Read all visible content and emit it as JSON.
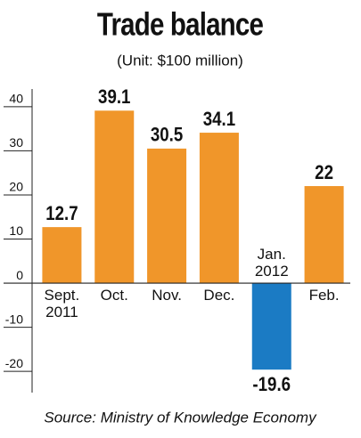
{
  "chart_data": {
    "type": "bar",
    "title": "Trade balance",
    "subtitle": "(Unit: $100 million)",
    "categories": [
      "Sept.\n2011",
      "Oct.",
      "Nov.",
      "Dec.",
      "Jan.\n2012",
      "Feb."
    ],
    "values": [
      12.7,
      39.1,
      30.5,
      34.1,
      -19.6,
      22
    ],
    "colors": [
      "#f0962a",
      "#f0962a",
      "#f0962a",
      "#f0962a",
      "#1b7bc4",
      "#f0962a"
    ],
    "ylim": [
      -24,
      44
    ],
    "yticks": [
      40,
      30,
      20,
      10,
      0,
      -10,
      -20
    ],
    "source": "Source: Ministry of Knowledge Economy"
  }
}
